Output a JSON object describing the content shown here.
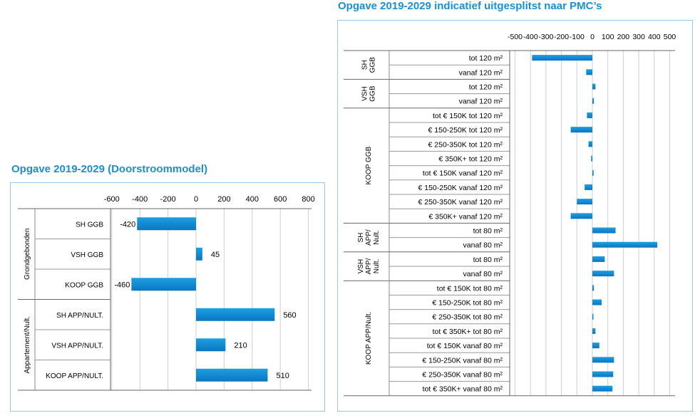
{
  "colors": {
    "bar": "#1e9fe0",
    "bar_dark": "#0b76c2",
    "title": "#1a8fd1",
    "frame": "#9dc6e6",
    "grid": "#cfcfcf"
  },
  "chart_data": [
    {
      "type": "bar",
      "orientation": "horizontal",
      "title": "Opgave 2019-2029 (Doorstroommodel)",
      "xlim": [
        -600,
        800
      ],
      "xticks": [
        -600,
        -400,
        -200,
        0,
        200,
        400,
        600,
        800
      ],
      "xtick_labels": [
        "-600",
        "-400",
        "-200",
        "0",
        "200",
        "400",
        "600",
        "800"
      ],
      "groups": [
        {
          "label": "Grondgebonden",
          "categories": [
            "SH GGB",
            "VSH GGB",
            "KOOP GGB"
          ]
        },
        {
          "label": "Appartement/Nult.",
          "categories": [
            "SH APP/NULT.",
            "VSH APP/NULT.",
            "KOOP APP/NULT."
          ]
        }
      ],
      "categories": [
        "SH GGB",
        "VSH GGB",
        "KOOP GGB",
        "SH APP/NULT.",
        "VSH APP/NULT.",
        "KOOP APP/NULT."
      ],
      "values": [
        -420,
        45,
        -460,
        560,
        210,
        510
      ],
      "value_labels": [
        "-420",
        "45",
        "-460",
        "560",
        "210",
        "510"
      ]
    },
    {
      "type": "bar",
      "orientation": "horizontal",
      "title": "Opgave 2019-2029 indicatief uitgesplitst naar PMC’s",
      "xlim": [
        -500,
        500
      ],
      "xticks": [
        -500,
        -400,
        -300,
        -200,
        -100,
        0,
        100,
        200,
        300,
        400,
        500
      ],
      "xtick_labels": [
        "-500",
        "-400",
        "-300",
        "-200",
        "-100",
        "0",
        "100",
        "200",
        "300",
        "400",
        "500"
      ],
      "groups": [
        {
          "label": "SH GGB",
          "lines": [
            "SH",
            "GGB"
          ],
          "categories": [
            "tot 120 m²",
            "vanaf 120 m²"
          ]
        },
        {
          "label": "VSH GGB",
          "lines": [
            "VSH",
            "GGB"
          ],
          "categories": [
            "tot 120 m²",
            "vanaf 120 m²"
          ]
        },
        {
          "label": "KOOP GGB",
          "lines": [
            "KOOP GGB"
          ],
          "categories": [
            "tot € 150K tot 120 m²",
            "€ 150-250K tot 120 m²",
            "€ 250-350K tot 120 m²",
            "€ 350K+ tot 120 m²",
            "tot € 150K vanaf 120 m²",
            "€ 150-250K vanaf 120 m²",
            "€ 250-350K vanaf 120 m²",
            "€ 350K+ vanaf 120 m²"
          ]
        },
        {
          "label": "SH APP/ Nult.",
          "lines": [
            "SH",
            "APP/",
            "Nult."
          ],
          "categories": [
            "tot 80 m²",
            "vanaf 80 m²"
          ]
        },
        {
          "label": "VSH APP/ Nult.",
          "lines": [
            "VSH",
            "APP/",
            "Nult."
          ],
          "categories": [
            "tot 80 m²",
            "vanaf 80 m²"
          ]
        },
        {
          "label": "KOOP APP/Nult.",
          "lines": [
            "KOOP APP/Nult."
          ],
          "categories": [
            "tot € 150K tot 80 m²",
            "€ 150-250K tot 80 m²",
            "€ 250-350K tot 80 m²",
            "tot € 350K+ tot 80 m²",
            "tot € 150K vanaf 80 m²",
            "€ 150-250K vanaf 80 m²",
            "€ 250-350K vanaf 80 m²",
            "tot € 350K+ vanaf 80 m²"
          ]
        }
      ],
      "values": [
        -390,
        -40,
        20,
        10,
        -35,
        -140,
        -25,
        -8,
        8,
        -50,
        -100,
        -140,
        150,
        420,
        80,
        140,
        10,
        60,
        5,
        20,
        45,
        140,
        135,
        130
      ]
    }
  ]
}
